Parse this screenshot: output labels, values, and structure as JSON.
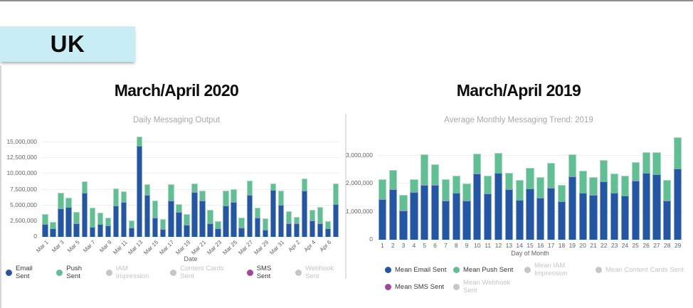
{
  "header": {
    "region_label": "UK"
  },
  "colors": {
    "email_blue": "#2356a4",
    "push_green": "#60c093",
    "sms_purple": "#a4469c",
    "inactive_gray": "#c6c6c6",
    "badge_bg": "#c9edf4"
  },
  "charts": [
    {
      "title": "March/April 2020",
      "subtitle": "Daily Messaging Output",
      "xlabel": "Date",
      "legend": {
        "layout": "center",
        "rows": [
          [
            {
              "label": "Email Sent",
              "color": "#2356a4",
              "active": true
            },
            {
              "label": "Push Sent",
              "color": "#60c093",
              "active": true
            },
            {
              "label": "IAM Impression",
              "color": "#c6c6c6",
              "active": false
            },
            {
              "label": "Content Cards Sent",
              "color": "#c6c6c6",
              "active": false
            },
            {
              "label": "SMS Sent",
              "color": "#a4469c",
              "active": true
            },
            {
              "label": "Webhook Sent",
              "color": "#c6c6c6",
              "active": false
            }
          ]
        ]
      }
    },
    {
      "title": "March/April 2019",
      "subtitle": "Average Monthly Messaging Trend: 2019",
      "xlabel": "Day of Month",
      "legend": {
        "layout": "grid",
        "rows": [
          [
            {
              "label": "Mean Email Sent",
              "color": "#2356a4",
              "active": true
            },
            {
              "label": "Mean Push Sent",
              "color": "#60c093",
              "active": true
            },
            {
              "label": "Mean IAM Impression",
              "color": "#c6c6c6",
              "active": false
            },
            {
              "label": "Mean Content Cards Sent",
              "color": "#c6c6c6",
              "active": false
            }
          ],
          [
            {
              "label": "Mean SMS Sent",
              "color": "#a4469c",
              "active": true
            },
            {
              "label": "Mean Webhook Sent",
              "color": "#c6c6c6",
              "active": false
            }
          ]
        ]
      }
    }
  ],
  "chart_data": [
    {
      "type": "bar",
      "stacked": true,
      "title": "Daily Messaging Output",
      "xlabel": "Date",
      "ylabel": "",
      "ylim": [
        0,
        15000000
      ],
      "x_tick_step": 2,
      "x_label_rotation": -45,
      "grid": "horizontal",
      "legend_position": "bottom",
      "y_ticks": [
        {
          "v": 0,
          "label": "0"
        },
        {
          "v": 2500000,
          "label": "2,500,000"
        },
        {
          "v": 5000000,
          "label": "5,000,000"
        },
        {
          "v": 7500000,
          "label": "7,500,000"
        },
        {
          "v": 10000000,
          "label": "10,000,000"
        },
        {
          "v": 12500000,
          "label": "12,500,000"
        },
        {
          "v": 15000000,
          "label": "15,000,000"
        }
      ],
      "categories": [
        "Mar 1",
        "Mar 2",
        "Mar 3",
        "Mar 4",
        "Mar 5",
        "Mar 6",
        "Mar 7",
        "Mar 8",
        "Mar 9",
        "Mar 10",
        "Mar 11",
        "Mar 12",
        "Mar 13",
        "Mar 14",
        "Mar 15",
        "Mar 16",
        "Mar 17",
        "Mar 18",
        "Mar 19",
        "Mar 20",
        "Mar 21",
        "Mar 22",
        "Mar 23",
        "Mar 24",
        "Mar 25",
        "Mar 26",
        "Mar 27",
        "Mar 28",
        "Mar 29",
        "Mar 30",
        "Mar 31",
        "Apr 1",
        "Apr 2",
        "Apr 3",
        "Apr 4",
        "Apr 5",
        "Apr 6",
        "Apr 7"
      ],
      "series": [
        {
          "name": "Email Sent",
          "color": "#2356a4",
          "values": [
            2000000,
            1300000,
            4500000,
            4700000,
            2100000,
            7000000,
            1600000,
            2000000,
            1800000,
            5000000,
            5500000,
            1450000,
            14400000,
            6600000,
            3000000,
            1250000,
            5700000,
            3900000,
            1900000,
            7100000,
            5800000,
            2200000,
            1300000,
            5000000,
            5500000,
            1500000,
            6600000,
            3100000,
            1100000,
            7500000,
            5100000,
            2100000,
            2100000,
            7300000,
            2650000,
            2100000,
            1400000,
            5200000
          ]
        },
        {
          "name": "Push Sent",
          "color": "#60c093",
          "values": [
            1600000,
            1100000,
            2500000,
            1500000,
            1900000,
            1850000,
            3050000,
            1800000,
            1300000,
            2700000,
            1700000,
            1150000,
            1500000,
            1800000,
            2800000,
            1550000,
            2600000,
            1300000,
            1700000,
            1400000,
            1500000,
            2100000,
            1200000,
            2300000,
            2100000,
            1500000,
            2300000,
            1500000,
            1800000,
            950000,
            2200000,
            2000000,
            1100000,
            2000000,
            1650000,
            2600000,
            1100000,
            3250000
          ]
        }
      ]
    },
    {
      "type": "bar",
      "stacked": true,
      "title": "Average Monthly Messaging Trend: 2019",
      "xlabel": "Day of Month",
      "ylabel": "",
      "ylim": [
        0,
        3000000
      ],
      "x_tick_step": 1,
      "x_label_rotation": 0,
      "grid": "horizontal",
      "legend_position": "bottom",
      "y_ticks": [
        {
          "v": 0,
          "label": "0"
        },
        {
          "v": 1000000,
          "label": "1,000,000"
        },
        {
          "v": 2000000,
          "label": "2,000,000"
        },
        {
          "v": 3000000,
          "label": "3,000,000"
        }
      ],
      "categories": [
        "1",
        "2",
        "3",
        "4",
        "5",
        "6",
        "7",
        "8",
        "9",
        "10",
        "11",
        "12",
        "13",
        "14",
        "15",
        "16",
        "17",
        "18",
        "19",
        "20",
        "21",
        "22",
        "23",
        "24",
        "25",
        "26",
        "27",
        "28",
        "29"
      ],
      "series": [
        {
          "name": "Mean Email Sent",
          "color": "#2356a4",
          "values": [
            1450000,
            1800000,
            1050000,
            1700000,
            1970000,
            1950000,
            1400000,
            1690000,
            1400000,
            2370000,
            1650000,
            2390000,
            1810000,
            1420000,
            1840000,
            1510000,
            1860000,
            1380000,
            2270000,
            1690000,
            1610000,
            2080000,
            1690000,
            1570000,
            2100000,
            2390000,
            2330000,
            1400000,
            2540000
          ]
        },
        {
          "name": "Mean Push Sent",
          "color": "#60c093",
          "values": [
            700000,
            700000,
            550000,
            450000,
            1080000,
            750000,
            760000,
            610000,
            610000,
            700000,
            640000,
            720000,
            590000,
            720000,
            720000,
            720000,
            890000,
            590000,
            780000,
            780000,
            640000,
            780000,
            680000,
            720000,
            670000,
            740000,
            800000,
            740000,
            1130000
          ]
        }
      ]
    }
  ]
}
